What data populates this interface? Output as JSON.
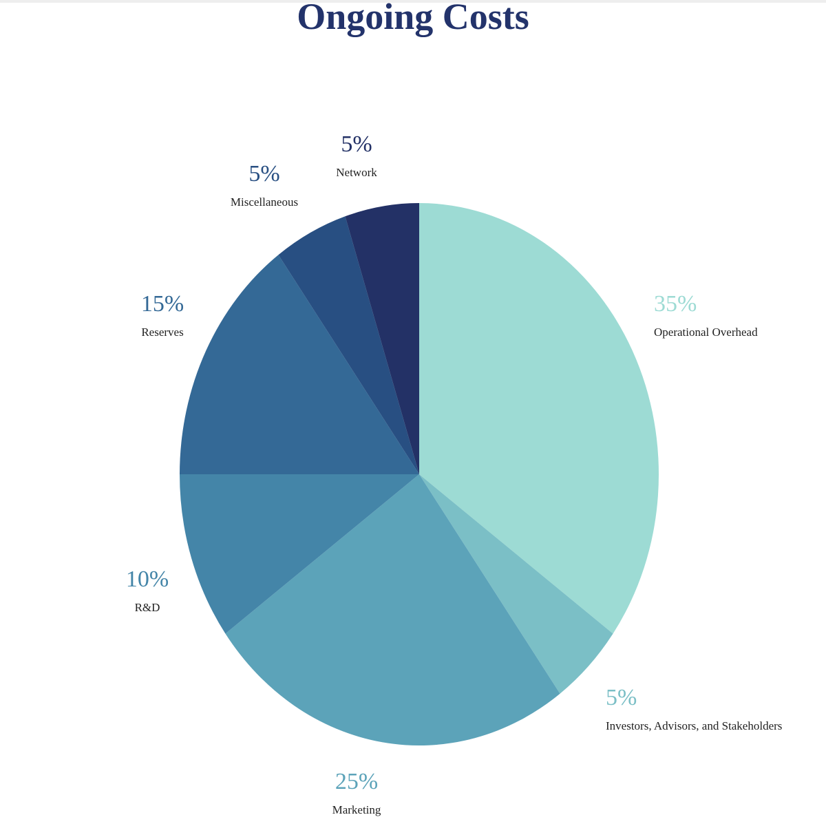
{
  "chart_data": {
    "type": "pie",
    "title": "Ongoing Costs",
    "slices": [
      {
        "label": "Operational Overhead",
        "value": 35,
        "value_label": "35%",
        "color": "#9ddbd4",
        "label_color": "#9ddbd4"
      },
      {
        "label": "Investors, Advisors, and Stakeholders",
        "value": 5,
        "value_label": "5%",
        "color": "#7bbfc6",
        "label_color": "#7bbfc6"
      },
      {
        "label": "Marketing",
        "value": 25,
        "value_label": "25%",
        "color": "#5ca3b9",
        "label_color": "#5ca3b9"
      },
      {
        "label": "R&D",
        "value": 10,
        "value_label": "10%",
        "color": "#4485a8",
        "label_color": "#4485a8"
      },
      {
        "label": "Reserves",
        "value": 15,
        "value_label": "15%",
        "color": "#346996",
        "label_color": "#346996"
      },
      {
        "label": "Miscellaneous",
        "value": 5,
        "value_label": "5%",
        "color": "#284f82",
        "label_color": "#284f82"
      },
      {
        "label": "Network",
        "value": 5,
        "value_label": "5%",
        "color": "#233166",
        "label_color": "#233166"
      }
    ],
    "start_angle": "12 o'clock",
    "direction": "clockwise",
    "legend": "none"
  },
  "colors": {
    "title": "#23336b",
    "background": "#ffffff"
  }
}
